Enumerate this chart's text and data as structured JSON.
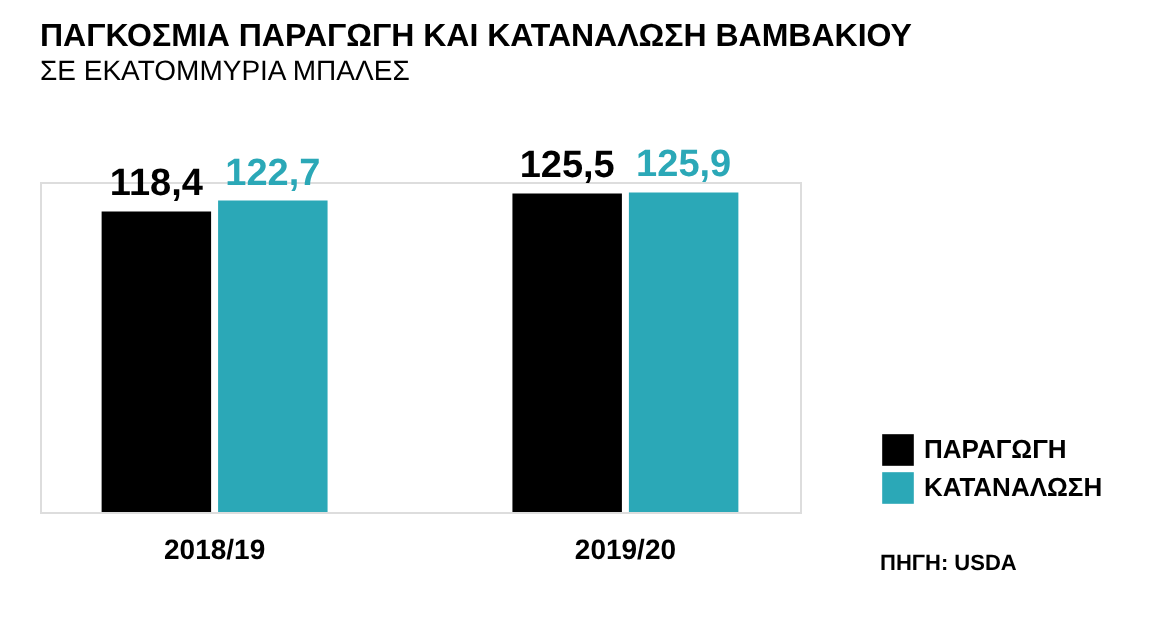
{
  "chart_data": {
    "type": "bar",
    "title": "ΠΑΓΚΟΣΜΙΑ ΠΑΡΑΓΩΓΗ ΚΑΙ ΚΑΤΑΝΑΛΩΣΗ ΒΑΜΒΑΚΙΟΥ",
    "subtitle": "ΣΕ ΕΚΑΤΟΜΜΥΡΙΑ ΜΠΑΛΕΣ",
    "categories": [
      "2018/19",
      "2019/20"
    ],
    "series": [
      {
        "name": "ΠΑΡΑΓΩΓΗ",
        "color": "#000000",
        "values": [
          118.4,
          125.5
        ],
        "value_labels": [
          "118,4",
          "125,5"
        ]
      },
      {
        "name": "ΚΑΤΑΝΑΛΩΣΗ",
        "color": "#2ba8b7",
        "values": [
          122.7,
          125.9
        ],
        "value_labels": [
          "122,7",
          "125,9"
        ]
      }
    ],
    "legend": "bottom right",
    "grid": false,
    "annotations": [
      "ΠΗΓΗ: USDA"
    ]
  }
}
